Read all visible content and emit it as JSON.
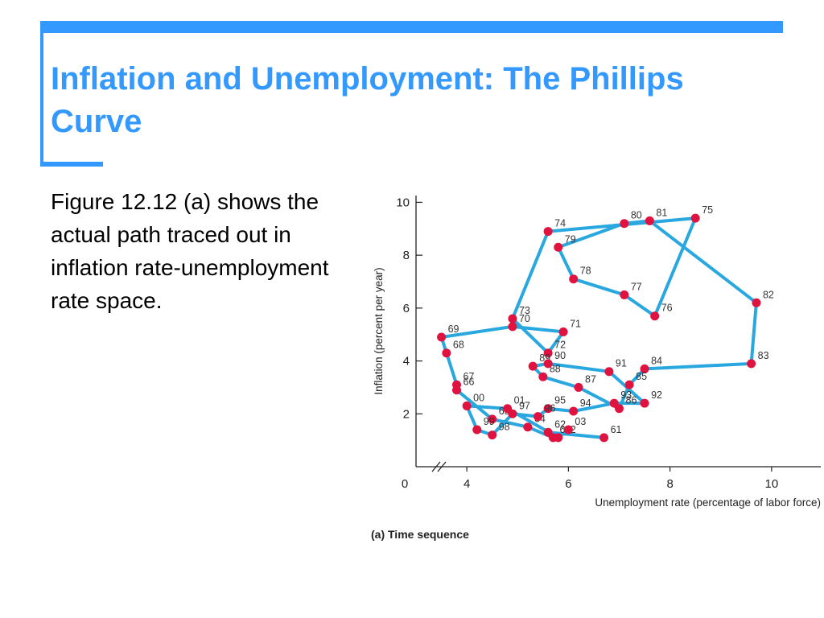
{
  "slide": {
    "title": "Inflation and Unemployment: The Phillips Curve",
    "body": "Figure 12.12 (a) shows the actual path traced out in inflation rate-unemployment rate space.",
    "accent_color": "#3399ff"
  },
  "chart_data": {
    "type": "line",
    "title": "",
    "caption": "(a) Time sequence",
    "xlabel": "Unemployment rate (percentage of labor force)",
    "ylabel": "Inflation (percent per year)",
    "xlim": [
      3,
      11
    ],
    "ylim": [
      0,
      10.5
    ],
    "xticks": [
      4,
      6,
      8,
      10
    ],
    "yticks": [
      2,
      4,
      6,
      8,
      10
    ],
    "origin_label": "0",
    "axis_break": true,
    "grid": false,
    "line_color": "#29a8e0",
    "point_color": "#e0123f",
    "path_order": [
      "61",
      "62",
      "63",
      "64",
      "65",
      "66",
      "67",
      "68",
      "69",
      "70",
      "71",
      "72",
      "73",
      "74",
      "75",
      "76",
      "77",
      "78",
      "79",
      "80",
      "81",
      "82",
      "83",
      "84",
      "85",
      "86",
      "87",
      "88",
      "89",
      "90",
      "91",
      "92",
      "93",
      "94",
      "95",
      "96",
      "97",
      "98",
      "99",
      "00",
      "01",
      "02",
      "03"
    ],
    "points": [
      {
        "year": "61",
        "x": 6.7,
        "y": 1.1
      },
      {
        "year": "62",
        "x": 5.6,
        "y": 1.3
      },
      {
        "year": "63",
        "x": 5.7,
        "y": 1.1
      },
      {
        "year": "64",
        "x": 5.2,
        "y": 1.5
      },
      {
        "year": "65",
        "x": 4.5,
        "y": 1.8
      },
      {
        "year": "66",
        "x": 3.8,
        "y": 2.9
      },
      {
        "year": "67",
        "x": 3.8,
        "y": 3.1
      },
      {
        "year": "68",
        "x": 3.6,
        "y": 4.3
      },
      {
        "year": "69",
        "x": 3.5,
        "y": 4.9
      },
      {
        "year": "70",
        "x": 4.9,
        "y": 5.3
      },
      {
        "year": "71",
        "x": 5.9,
        "y": 5.1
      },
      {
        "year": "72",
        "x": 5.6,
        "y": 4.3
      },
      {
        "year": "73",
        "x": 4.9,
        "y": 5.6
      },
      {
        "year": "74",
        "x": 5.6,
        "y": 8.9
      },
      {
        "year": "75",
        "x": 8.5,
        "y": 9.4
      },
      {
        "year": "76",
        "x": 7.7,
        "y": 5.7
      },
      {
        "year": "77",
        "x": 7.1,
        "y": 6.5
      },
      {
        "year": "78",
        "x": 6.1,
        "y": 7.1
      },
      {
        "year": "79",
        "x": 5.8,
        "y": 8.3
      },
      {
        "year": "80",
        "x": 7.1,
        "y": 9.2
      },
      {
        "year": "81",
        "x": 7.6,
        "y": 9.3
      },
      {
        "year": "82",
        "x": 9.7,
        "y": 6.2
      },
      {
        "year": "83",
        "x": 9.6,
        "y": 3.9
      },
      {
        "year": "84",
        "x": 7.5,
        "y": 3.7
      },
      {
        "year": "85",
        "x": 7.2,
        "y": 3.1
      },
      {
        "year": "86",
        "x": 7.0,
        "y": 2.2
      },
      {
        "year": "87",
        "x": 6.2,
        "y": 3.0
      },
      {
        "year": "88",
        "x": 5.5,
        "y": 3.4
      },
      {
        "year": "89",
        "x": 5.3,
        "y": 3.8
      },
      {
        "year": "90",
        "x": 5.6,
        "y": 3.9
      },
      {
        "year": "91",
        "x": 6.8,
        "y": 3.6
      },
      {
        "year": "92",
        "x": 7.5,
        "y": 2.4
      },
      {
        "year": "93",
        "x": 6.9,
        "y": 2.4
      },
      {
        "year": "94",
        "x": 6.1,
        "y": 2.1
      },
      {
        "year": "95",
        "x": 5.6,
        "y": 2.2
      },
      {
        "year": "96",
        "x": 5.4,
        "y": 1.9
      },
      {
        "year": "97",
        "x": 4.9,
        "y": 2.0
      },
      {
        "year": "98",
        "x": 4.5,
        "y": 1.2
      },
      {
        "year": "99",
        "x": 4.2,
        "y": 1.4
      },
      {
        "year": "00",
        "x": 4.0,
        "y": 2.3
      },
      {
        "year": "01",
        "x": 4.8,
        "y": 2.2
      },
      {
        "year": "02",
        "x": 5.8,
        "y": 1.1
      },
      {
        "year": "03",
        "x": 6.0,
        "y": 1.4
      }
    ]
  }
}
